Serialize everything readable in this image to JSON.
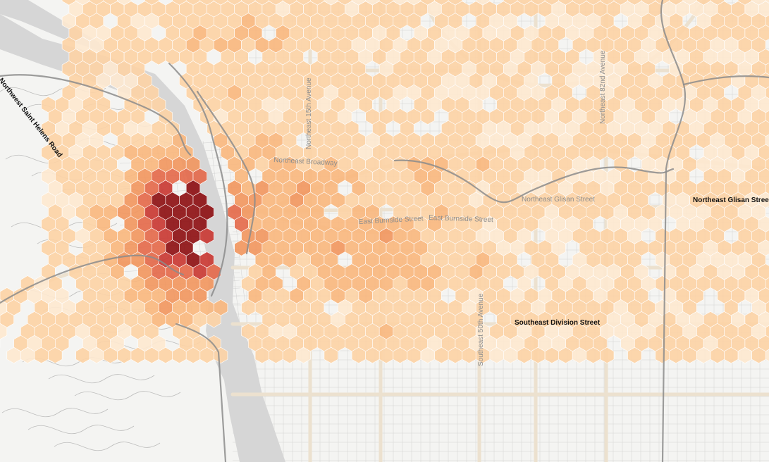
{
  "map": {
    "type": "hexbin-density",
    "colors": {
      "land": "#f4f4f2",
      "water": "#d6d6d6",
      "minor_road": "#c9c9c9",
      "arterial": "#ece1cf",
      "highway": "#8c8c8c",
      "hex_stroke": "#ffffff"
    },
    "density_scale": [
      "#fde8d0",
      "#fcd2a6",
      "#f9b77f",
      "#f19761",
      "#e46a4c",
      "#c93a34",
      "#8e1115"
    ],
    "labels": [
      {
        "text": "Northeast Broadway",
        "style": "light"
      },
      {
        "text": "Northeast 15th Avenue",
        "style": "light"
      },
      {
        "text": "Northeast 82nd Avenue",
        "style": "light"
      },
      {
        "text": "Northeast Glisan Street",
        "style": "light"
      },
      {
        "text": "Northeast Glisan Street",
        "style": "dark"
      },
      {
        "text": "East Burnside Street",
        "style": "light"
      },
      {
        "text": "East Burnside Street",
        "style": "light"
      },
      {
        "text": "Southeast Division Street",
        "style": "dark"
      },
      {
        "text": "Southeast 50th Avenue",
        "style": "light"
      },
      {
        "text": "Northwest Saint Helens Road",
        "style": "dark"
      }
    ]
  }
}
